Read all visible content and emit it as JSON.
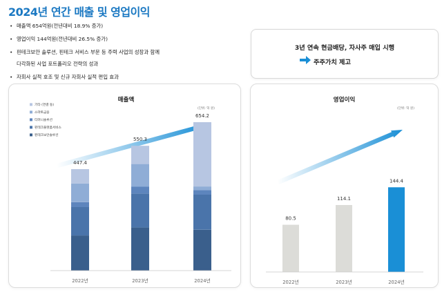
{
  "page": {
    "title": "2024년 연간 매출 및 영업이익",
    "bullets": [
      "매출액 654억원(전년대비 18.9% 증가)",
      "영업이익 144억원(전년대비 26.5% 증가)",
      "핀테크보안 솔루션, 핀테크 서비스 부문 등 주력 사업의 성장과 함께",
      "다각화된 사업 포트폴리오 전략의 성과",
      "자회사 실적 호조 및 신규 자회사 실적 편입 효과"
    ],
    "bullet_marker": "•"
  },
  "callout": {
    "line1": "3년 연속 현금배당, 자사주 매입 시행",
    "line2": "주주가치 제고",
    "arrow_icon": "arrow-right-icon",
    "arrow_color": "#1a8fd6"
  },
  "colors": {
    "title": "#1a78c2",
    "stack": [
      "#3a5f8c",
      "#4a74aa",
      "#5d85bd",
      "#8fadd6",
      "#b7c6e2"
    ],
    "profit_gray": "#dcdcd8",
    "profit_blue": "#1a8fd6",
    "trend_arrow": "#1a8fd6"
  },
  "chart_data": [
    {
      "type": "bar",
      "stacked": true,
      "title": "매출액",
      "unit_note": "(단위: 억 원)",
      "categories": [
        "2022년",
        "2023년",
        "2024년"
      ],
      "totals": [
        447.4,
        550.3,
        654.2
      ],
      "total_labels": [
        "447.4",
        "550.3",
        "654.2"
      ],
      "series": [
        {
          "name": "핀테크보안솔루션",
          "values": [
            155,
            190,
            180
          ]
        },
        {
          "name": "핀테크플랫폼서비스",
          "values": [
            125,
            150,
            155
          ]
        },
        {
          "name": "티머니솔루션",
          "values": [
            22,
            30,
            20
          ]
        },
        {
          "name": "스마트금융",
          "values": [
            82,
            100,
            16
          ]
        },
        {
          "name": "기타 (연결 등)",
          "values": [
            63.4,
            80.3,
            283.2
          ]
        }
      ],
      "legend_order": [
        "기타 (연결 등)",
        "스마트금융",
        "티머니솔루션",
        "핀테크플랫폼서비스",
        "핀테크보안솔루션"
      ],
      "legend_position": "top-left",
      "ylim": [
        0,
        700
      ],
      "grid": false,
      "trend_arrow": true
    },
    {
      "type": "bar",
      "title": "영업이익",
      "unit_note": "(단위: 억 원)",
      "categories": [
        "2022년",
        "2023년",
        "2024년"
      ],
      "values": [
        80.5,
        114.1,
        144.4
      ],
      "value_labels": [
        "80.5",
        "114.1",
        "144.4"
      ],
      "highlight_index": 2,
      "ylim": [
        0,
        200
      ],
      "grid": false,
      "trend_arrow": true
    }
  ]
}
